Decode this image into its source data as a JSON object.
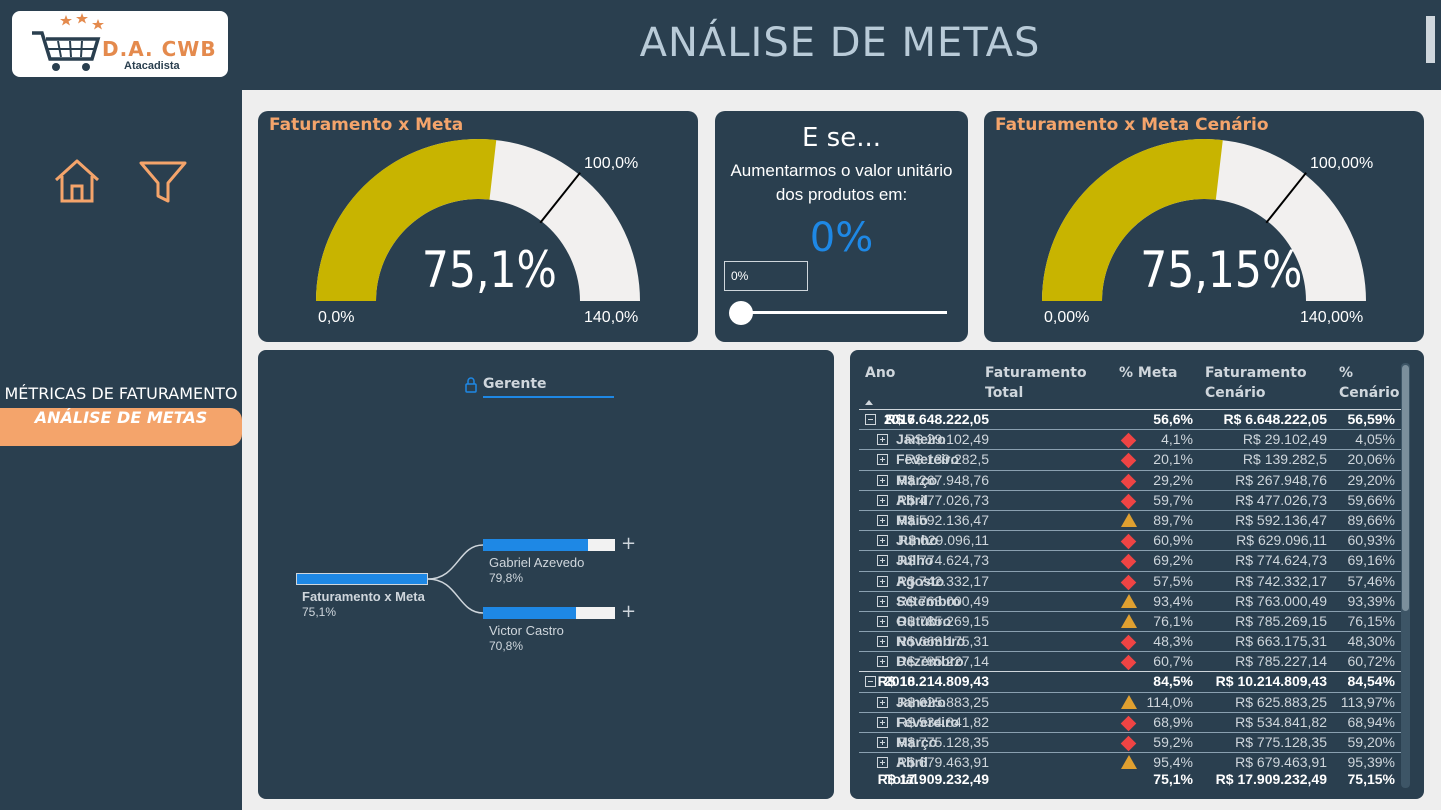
{
  "logo": {
    "brand": "D.A. CWB",
    "sub": "Atacadista"
  },
  "header": {
    "title": "ANÁLISE DE METAS"
  },
  "icons": {
    "home": "home-icon",
    "filter": "filter-icon",
    "cart": "cart-icon",
    "lock": "lock-icon"
  },
  "sidebar": {
    "section": "MÉTRICAS DE FATURAMENTO",
    "active": "ANÁLISE DE METAS"
  },
  "gauge1": {
    "title": "Faturamento x Meta",
    "value": "75,1%",
    "min": "0,0%",
    "max": "140,0%",
    "target": "100,0%",
    "fraction": 0.536,
    "target_fraction": 0.714
  },
  "whatif": {
    "title": "E se...",
    "line1": "Aumentarmos o valor unitário",
    "line2": "dos produtos em:",
    "value": "0%",
    "input": "0%",
    "slider": 0
  },
  "gauge2": {
    "title": "Faturamento x Meta Cenário",
    "value": "75,15%",
    "min": "0,00%",
    "max": "140,00%",
    "target": "100,00%",
    "fraction": 0.537,
    "target_fraction": 0.714
  },
  "tree": {
    "header": "Gerente",
    "root": {
      "name": "Faturamento x Meta",
      "pct": "75,1%",
      "value": 0.751
    },
    "children": [
      {
        "name": "Gabriel Azevedo",
        "pct": "79,8%",
        "value": 0.798
      },
      {
        "name": "Victor Castro",
        "pct": "70,8%",
        "value": 0.708
      }
    ]
  },
  "colors": {
    "accent": "#f4a46b",
    "gauge_fill": "#c8b400",
    "blue": "#1e88e5",
    "bg": "#2a3f4f",
    "bad": "#ef4444",
    "warn": "#e0a030"
  },
  "table": {
    "headers": {
      "ano": "Ano",
      "fat1": "Faturamento",
      "fat2": "Total",
      "meta": "% Meta",
      "cen1": "Faturamento",
      "cen2": "Cenário",
      "pcen1": "%",
      "pcen2": "Cenário"
    },
    "rows": [
      {
        "type": "year",
        "ano": "2017",
        "fat": "R$ 6.648.222,05",
        "icon": "",
        "meta": "56,6%",
        "cen": "R$ 6.648.222,05",
        "pcen": "56,59%"
      },
      {
        "type": "month",
        "ano": "Janeiro",
        "fat": "R$ 29.102,49",
        "icon": "diamond",
        "meta": "4,1%",
        "cen": "R$ 29.102,49",
        "pcen": "4,05%"
      },
      {
        "type": "month",
        "ano": "Fevereiro",
        "fat": "R$ 139.282,5",
        "icon": "diamond",
        "meta": "20,1%",
        "cen": "R$ 139.282,5",
        "pcen": "20,06%"
      },
      {
        "type": "month",
        "ano": "Março",
        "fat": "R$ 267.948,76",
        "icon": "diamond",
        "meta": "29,2%",
        "cen": "R$ 267.948,76",
        "pcen": "29,20%"
      },
      {
        "type": "month",
        "ano": "Abril",
        "fat": "R$ 477.026,73",
        "icon": "diamond",
        "meta": "59,7%",
        "cen": "R$ 477.026,73",
        "pcen": "59,66%"
      },
      {
        "type": "month",
        "ano": "Maio",
        "fat": "R$ 592.136,47",
        "icon": "triangle",
        "meta": "89,7%",
        "cen": "R$ 592.136,47",
        "pcen": "89,66%"
      },
      {
        "type": "month",
        "ano": "Junho",
        "fat": "R$ 629.096,11",
        "icon": "diamond",
        "meta": "60,9%",
        "cen": "R$ 629.096,11",
        "pcen": "60,93%"
      },
      {
        "type": "month",
        "ano": "Julho",
        "fat": "R$ 774.624,73",
        "icon": "diamond",
        "meta": "69,2%",
        "cen": "R$ 774.624,73",
        "pcen": "69,16%"
      },
      {
        "type": "month",
        "ano": "Agosto",
        "fat": "R$ 742.332,17",
        "icon": "diamond",
        "meta": "57,5%",
        "cen": "R$ 742.332,17",
        "pcen": "57,46%"
      },
      {
        "type": "month",
        "ano": "Setembro",
        "fat": "R$ 763.000,49",
        "icon": "triangle",
        "meta": "93,4%",
        "cen": "R$ 763.000,49",
        "pcen": "93,39%"
      },
      {
        "type": "month",
        "ano": "Outubro",
        "fat": "R$ 785.269,15",
        "icon": "triangle",
        "meta": "76,1%",
        "cen": "R$ 785.269,15",
        "pcen": "76,15%"
      },
      {
        "type": "month",
        "ano": "Novembro",
        "fat": "R$ 663.175,31",
        "icon": "diamond",
        "meta": "48,3%",
        "cen": "R$ 663.175,31",
        "pcen": "48,30%"
      },
      {
        "type": "month",
        "ano": "Dezembro",
        "fat": "R$ 785.227,14",
        "icon": "diamond",
        "meta": "60,7%",
        "cen": "R$ 785.227,14",
        "pcen": "60,72%"
      },
      {
        "type": "year",
        "ano": "2018",
        "fat": "R$ 10.214.809,43",
        "icon": "",
        "meta": "84,5%",
        "cen": "R$ 10.214.809,43",
        "pcen": "84,54%"
      },
      {
        "type": "month",
        "ano": "Janeiro",
        "fat": "R$ 625.883,25",
        "icon": "triangle",
        "meta": "114,0%",
        "cen": "R$ 625.883,25",
        "pcen": "113,97%"
      },
      {
        "type": "month",
        "ano": "Fevereiro",
        "fat": "R$ 534.841,82",
        "icon": "diamond",
        "meta": "68,9%",
        "cen": "R$ 534.841,82",
        "pcen": "68,94%"
      },
      {
        "type": "month",
        "ano": "Março",
        "fat": "R$ 775.128,35",
        "icon": "diamond",
        "meta": "59,2%",
        "cen": "R$ 775.128,35",
        "pcen": "59,20%"
      },
      {
        "type": "month",
        "ano": "Abril",
        "fat": "R$ 679.463,91",
        "icon": "triangle",
        "meta": "95,4%",
        "cen": "R$ 679.463,91",
        "pcen": "95,39%"
      }
    ],
    "total": {
      "label": "Total",
      "fat": "R$ 17.909.232,49",
      "meta": "75,1%",
      "cen": "R$ 17.909.232,49",
      "pcen": "75,15%"
    }
  }
}
